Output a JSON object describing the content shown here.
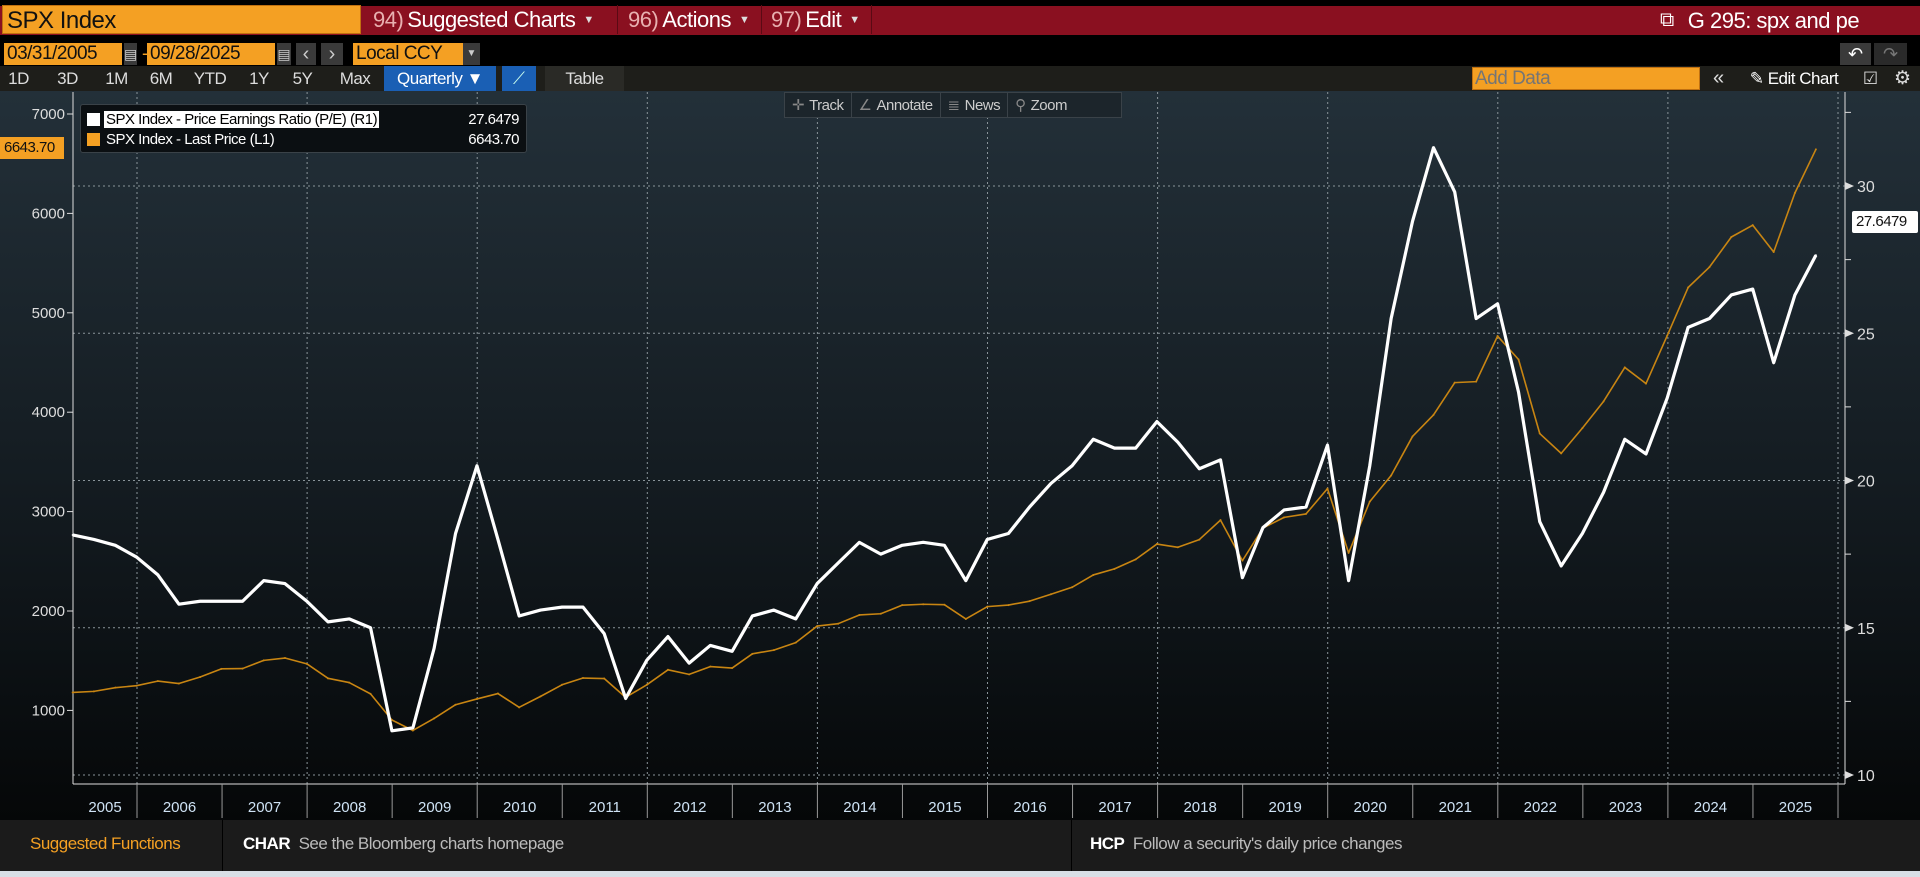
{
  "header": {
    "ticker": "SPX Index",
    "menus": [
      {
        "num": "94)",
        "label": "Suggested Charts"
      },
      {
        "num": "96)",
        "label": "Actions"
      },
      {
        "num": "97)",
        "label": "Edit"
      }
    ],
    "chart_title": "G 295: spx and pe"
  },
  "range": {
    "start": "03/31/2005",
    "dash": "-",
    "end": "09/28/2025",
    "prev": "‹",
    "next": "›",
    "currency": "Local CCY"
  },
  "periods": [
    "1D",
    "3D",
    "1M",
    "6M",
    "YTD",
    "1Y",
    "5Y",
    "Max"
  ],
  "frequency": "Quarterly ▼",
  "table_label": "Table",
  "add_data_placeholder": "Add Data",
  "collapse": "«",
  "edit_chart": "Edit Chart",
  "chart_tools": [
    {
      "icon": "✛",
      "label": "Track"
    },
    {
      "icon": "∠",
      "label": "Annotate"
    },
    {
      "icon": "≣",
      "label": "News"
    },
    {
      "icon": "⚲",
      "label": "Zoom"
    }
  ],
  "colors": {
    "accent": "#f4a023",
    "brand_red": "#8a1020",
    "pe": "#ffffff",
    "price": "#c88512",
    "active_tab": "#1a5fb4"
  },
  "footer": {
    "title": "Suggested Functions",
    "items": [
      {
        "code": "CHAR",
        "desc": "See the Bloomberg charts homepage"
      },
      {
        "code": "HCP",
        "desc": "Follow a security's daily price changes"
      }
    ]
  },
  "chart_data": {
    "type": "line",
    "x_ticks": [
      "2005",
      "2006",
      "2007",
      "2008",
      "2009",
      "2010",
      "2011",
      "2012",
      "2013",
      "2014",
      "2015",
      "2016",
      "2017",
      "2018",
      "2019",
      "2020",
      "2021",
      "2022",
      "2023",
      "2024",
      "2025"
    ],
    "left_axis": {
      "ticks": [
        1000,
        2000,
        3000,
        4000,
        5000,
        6000,
        7000
      ],
      "range": [
        260,
        7220
      ]
    },
    "right_axis": {
      "ticks": [
        10,
        15,
        20,
        25,
        30
      ],
      "range": [
        9.7,
        33.2
      ]
    },
    "grid": true,
    "legend": "top-left",
    "x": [
      "2005-03-31",
      "2005-06-30",
      "2005-09-30",
      "2005-12-30",
      "2006-03-31",
      "2006-06-30",
      "2006-09-29",
      "2006-12-29",
      "2007-03-30",
      "2007-06-29",
      "2007-09-28",
      "2007-12-31",
      "2008-03-31",
      "2008-06-30",
      "2008-09-30",
      "2008-12-31",
      "2009-03-31",
      "2009-06-30",
      "2009-09-30",
      "2009-12-31",
      "2010-03-31",
      "2010-06-30",
      "2010-09-30",
      "2010-12-31",
      "2011-03-31",
      "2011-06-30",
      "2011-09-30",
      "2011-12-30",
      "2012-03-30",
      "2012-06-29",
      "2012-09-28",
      "2012-12-31",
      "2013-03-28",
      "2013-06-28",
      "2013-09-30",
      "2013-12-31",
      "2014-03-31",
      "2014-06-30",
      "2014-09-30",
      "2014-12-31",
      "2015-03-31",
      "2015-06-30",
      "2015-09-30",
      "2015-12-31",
      "2016-03-31",
      "2016-06-30",
      "2016-09-30",
      "2016-12-30",
      "2017-03-31",
      "2017-06-30",
      "2017-09-29",
      "2017-12-29",
      "2018-03-29",
      "2018-06-29",
      "2018-09-28",
      "2018-12-31",
      "2019-03-29",
      "2019-06-28",
      "2019-09-30",
      "2019-12-31",
      "2020-03-31",
      "2020-06-30",
      "2020-09-30",
      "2020-12-31",
      "2021-03-31",
      "2021-06-30",
      "2021-09-30",
      "2021-12-31",
      "2022-03-31",
      "2022-06-30",
      "2022-09-30",
      "2022-12-30",
      "2023-03-31",
      "2023-06-30",
      "2023-09-29",
      "2023-12-29",
      "2024-03-28",
      "2024-06-28",
      "2024-09-30",
      "2024-12-31",
      "2025-03-31",
      "2025-06-30",
      "2025-09-28"
    ],
    "series": [
      {
        "name": "SPX Index - Price Earnings Ratio (P/E) (R1)",
        "axis": "right",
        "last": "27.6479",
        "color": "#ffffff",
        "values": [
          18.15,
          18.0,
          17.8,
          17.4,
          16.8,
          15.8,
          15.9,
          15.9,
          15.9,
          16.6,
          16.5,
          15.9,
          15.2,
          15.3,
          15.0,
          11.5,
          11.6,
          14.3,
          18.2,
          20.5,
          18.0,
          15.4,
          15.6,
          15.7,
          15.7,
          14.8,
          12.6,
          13.9,
          14.7,
          13.8,
          14.4,
          14.2,
          15.4,
          15.6,
          15.3,
          16.5,
          17.2,
          17.9,
          17.5,
          17.8,
          17.9,
          17.8,
          16.6,
          18.0,
          18.2,
          19.1,
          19.9,
          20.5,
          21.4,
          21.1,
          21.1,
          22.0,
          21.3,
          20.4,
          20.7,
          16.7,
          18.4,
          19.0,
          19.1,
          21.2,
          16.6,
          20.5,
          25.5,
          28.8,
          31.3,
          29.8,
          25.5,
          26.0,
          23.0,
          18.6,
          17.1,
          18.2,
          19.6,
          21.4,
          20.9,
          22.8,
          25.2,
          25.5,
          26.3,
          26.5,
          24.0,
          26.3,
          27.6479
        ]
      },
      {
        "name": "SPX Index - Last Price (L1)",
        "axis": "left",
        "last": "6643.70",
        "color": "#c88512",
        "values": [
          1180.6,
          1191.3,
          1228.8,
          1248.3,
          1294.8,
          1270.2,
          1335.9,
          1418.3,
          1420.9,
          1503.4,
          1526.8,
          1468.4,
          1322.7,
          1280.0,
          1166.4,
          903.3,
          797.9,
          919.3,
          1057.1,
          1115.1,
          1169.4,
          1030.7,
          1141.2,
          1257.6,
          1325.8,
          1320.6,
          1131.4,
          1257.6,
          1408.5,
          1362.2,
          1440.7,
          1426.2,
          1569.2,
          1606.3,
          1681.6,
          1848.4,
          1872.3,
          1960.2,
          1972.3,
          2058.9,
          2067.9,
          2063.1,
          1920.0,
          2043.9,
          2059.7,
          2098.9,
          2168.3,
          2238.8,
          2362.7,
          2423.4,
          2519.4,
          2673.6,
          2640.9,
          2718.4,
          2914.0,
          2506.9,
          2834.4,
          2941.8,
          2976.7,
          3230.8,
          2584.6,
          3100.3,
          3363.0,
          3756.1,
          3972.9,
          4297.5,
          4307.5,
          4766.2,
          4530.4,
          3785.4,
          3585.6,
          3839.5,
          4109.3,
          4450.4,
          4288.1,
          4769.8,
          5254.4,
          5460.5,
          5762.5,
          5881.6,
          5611.9,
          6205.0,
          6643.7
        ]
      }
    ]
  }
}
